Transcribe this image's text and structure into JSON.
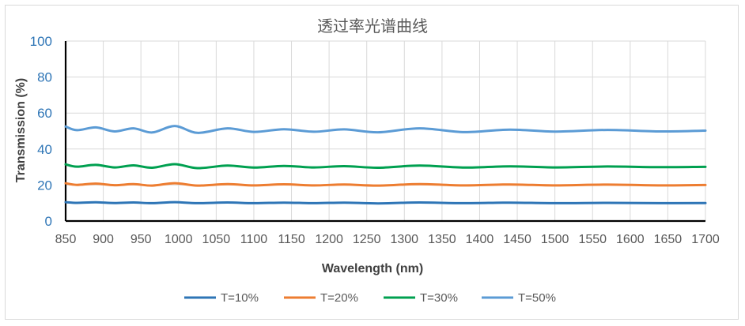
{
  "chart_data": {
    "type": "line",
    "title": "透过率光谱曲线",
    "xlabel": "Wavelength (nm)",
    "ylabel": "Transmission (%)",
    "xlim": [
      850,
      1700
    ],
    "ylim": [
      0,
      100
    ],
    "x_ticks": [
      "850",
      "900",
      "950",
      "1000",
      "1050",
      "1100",
      "1150",
      "1200",
      "1250",
      "1300",
      "1350",
      "1400",
      "1450",
      "1500",
      "1550",
      "1600",
      "1650",
      "1700"
    ],
    "y_ticks": [
      "0",
      "20",
      "40",
      "60",
      "80",
      "100"
    ],
    "grid": true,
    "legend_position": "bottom",
    "x": [
      850,
      865,
      890,
      915,
      940,
      965,
      995,
      1025,
      1065,
      1100,
      1140,
      1180,
      1220,
      1265,
      1320,
      1380,
      1440,
      1500,
      1570,
      1640,
      1700
    ],
    "series": [
      {
        "name": "T=10%",
        "color": "#2e75b6",
        "values": [
          10.5,
          10.1,
          10.4,
          10.0,
          10.3,
          9.9,
          10.5,
          9.9,
          10.3,
          9.9,
          10.2,
          9.9,
          10.2,
          9.8,
          10.3,
          9.9,
          10.2,
          9.9,
          10.1,
          9.9,
          10.0
        ]
      },
      {
        "name": "T=20%",
        "color": "#ed7d31",
        "values": [
          21.0,
          20.1,
          20.8,
          19.9,
          20.5,
          19.7,
          21.0,
          19.7,
          20.5,
          19.8,
          20.4,
          19.8,
          20.3,
          19.7,
          20.5,
          19.8,
          20.3,
          19.8,
          20.2,
          19.8,
          20.0
        ]
      },
      {
        "name": "T=30%",
        "color": "#00a050",
        "values": [
          31.5,
          30.2,
          31.2,
          29.8,
          30.9,
          29.6,
          31.6,
          29.4,
          30.8,
          29.7,
          30.6,
          29.8,
          30.5,
          29.6,
          30.8,
          29.7,
          30.4,
          29.8,
          30.3,
          29.9,
          30.1
        ]
      },
      {
        "name": "T=50%",
        "color": "#5b9bd5",
        "values": [
          52.5,
          50.5,
          52.0,
          49.8,
          51.5,
          49.2,
          52.8,
          49.0,
          51.5,
          49.5,
          51.0,
          49.6,
          50.9,
          49.3,
          51.5,
          49.4,
          50.8,
          49.7,
          50.6,
          49.8,
          50.2
        ]
      }
    ]
  }
}
